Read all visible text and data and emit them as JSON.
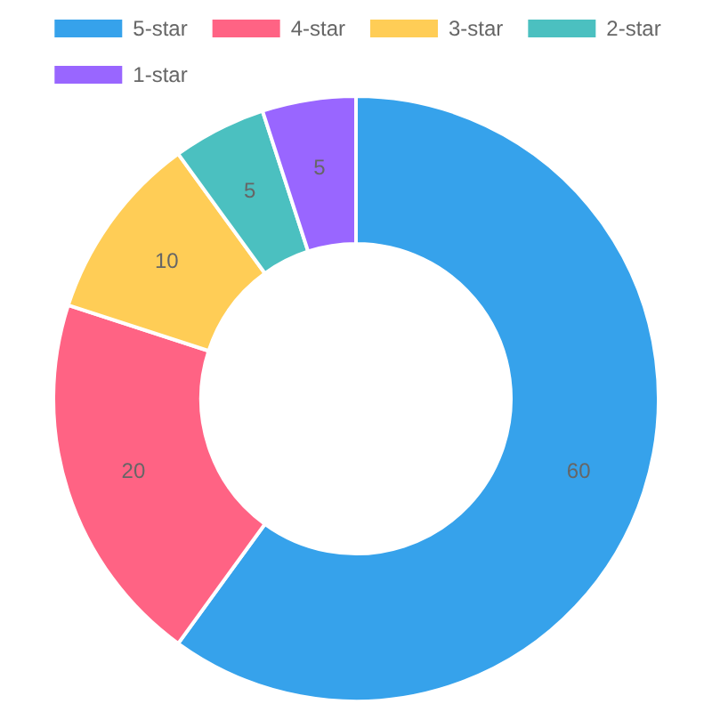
{
  "chart_data": {
    "type": "donut",
    "categories": [
      "5-star",
      "4-star",
      "3-star",
      "2-star",
      "1-star"
    ],
    "values": [
      60,
      20,
      10,
      5,
      5
    ],
    "colors": [
      "#36a2eb",
      "#ff6384",
      "#ffcd56",
      "#4bc0c0",
      "#9966ff"
    ],
    "data_labels": true,
    "legend": "top"
  }
}
